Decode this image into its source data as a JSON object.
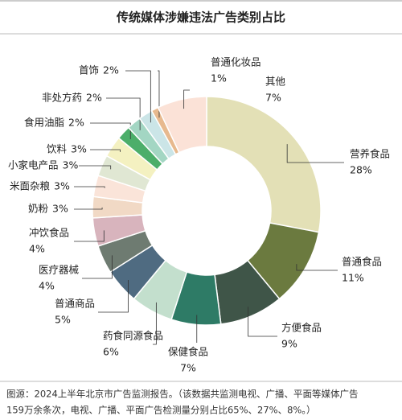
{
  "chart_data": {
    "type": "donut",
    "title": "传统媒体涉嫌违法广告类别占比",
    "categories": [
      "营养食品",
      "普通食品",
      "方便食品",
      "保健食品",
      "药食同源食品",
      "普通商品",
      "医疗器械",
      "冲饮食品",
      "奶粉",
      "米面杂粮",
      "小家电产品",
      "饮料",
      "食用油脂",
      "非处方药",
      "首饰",
      "普通化妆品",
      "其他"
    ],
    "values": [
      28,
      11,
      9,
      7,
      6,
      5,
      4,
      4,
      3,
      3,
      3,
      3,
      2,
      2,
      2,
      1,
      7
    ],
    "value_labels": [
      "28%",
      "11%",
      "9%",
      "7%",
      "6%",
      "5%",
      "4%",
      "4%",
      "3%",
      "3%",
      "3%",
      "3%",
      "2%",
      "2%",
      "2%",
      "1%",
      "7%"
    ],
    "colors": [
      "#e3e0b6",
      "#6b7a3f",
      "#3f5548",
      "#2e7b66",
      "#c3dfcd",
      "#4f6b81",
      "#6e7b71",
      "#d8b4bd",
      "#f1d9c5",
      "#fae4d9",
      "#e0e7d3",
      "#f4f1c1",
      "#4cae6a",
      "#a3d6c3",
      "#cbe5e7",
      "#e7b98e",
      "#fbe2d7"
    ],
    "source": [
      "图源：2024上半年北京市广告监测报告。（该数据共监测电视、广播、平面等媒体广告",
      "159万余条次，电视、广播、平面广告检测量分别占比65%、27%、8%。）"
    ]
  }
}
